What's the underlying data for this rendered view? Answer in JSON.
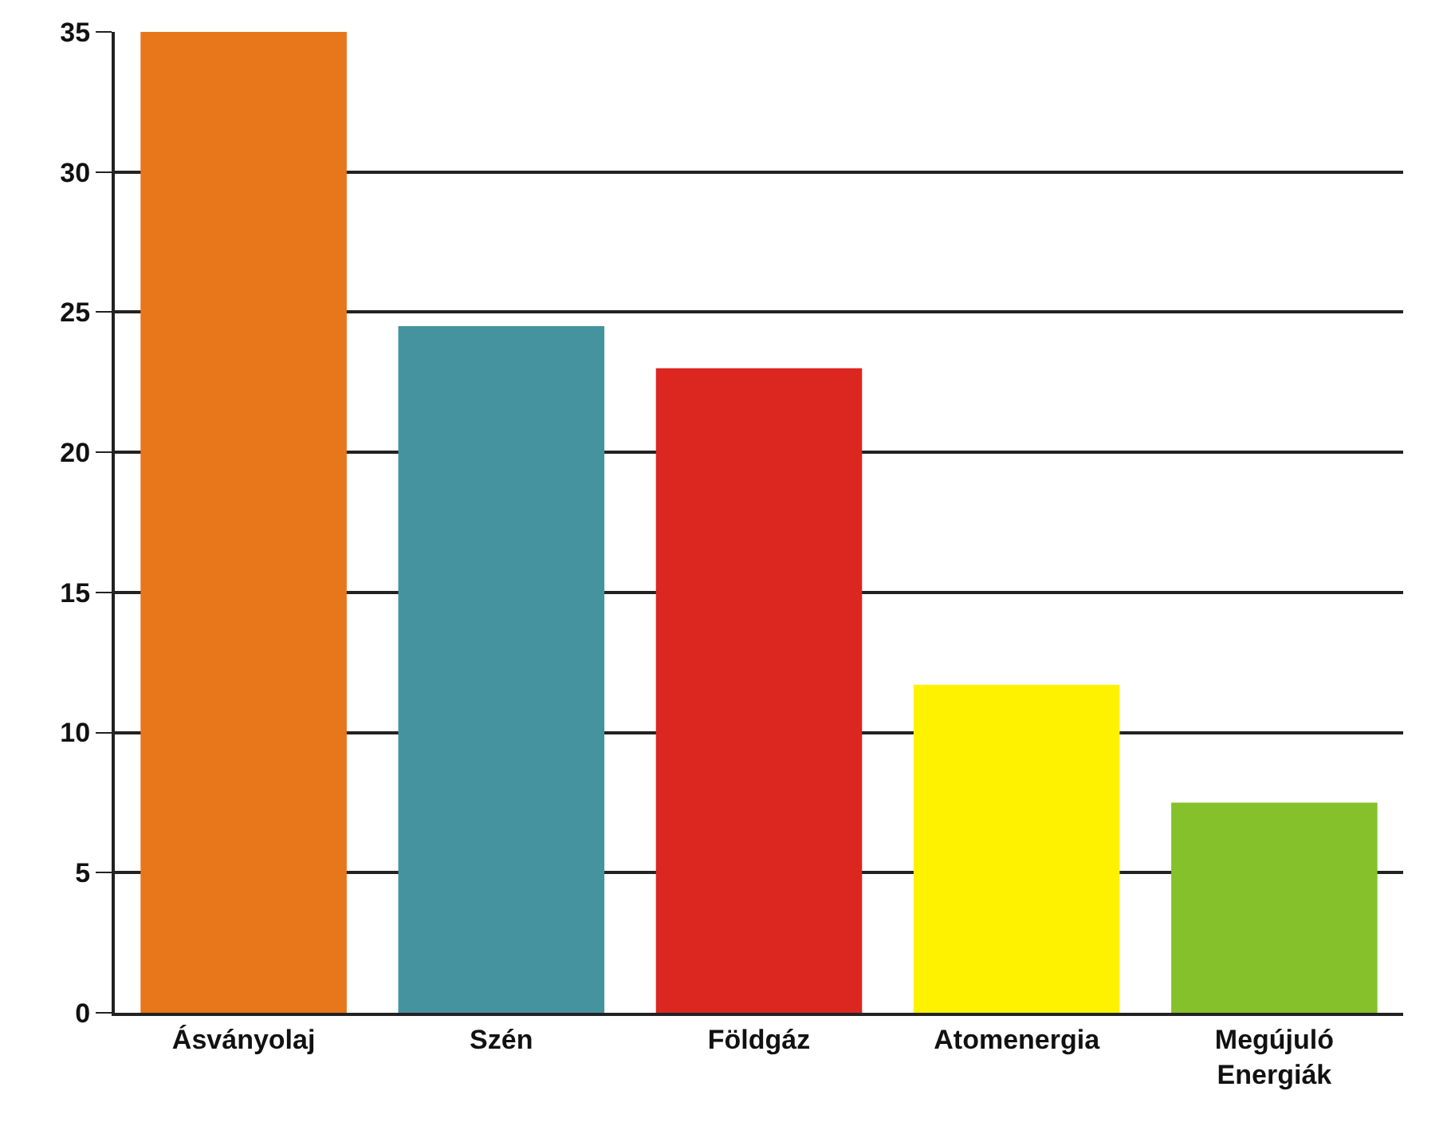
{
  "chart_data": {
    "type": "bar",
    "categories": [
      "Ásványolaj",
      "Szén",
      "Földgáz",
      "Atomenergia",
      "Megújuló Energiák"
    ],
    "values": [
      35,
      24.5,
      23,
      11.7,
      7.5
    ],
    "colors": [
      "#e8761a",
      "#45939f",
      "#db2720",
      "#fff200",
      "#84c12a"
    ],
    "ylim": [
      0,
      35
    ],
    "yticks": [
      0,
      5,
      10,
      15,
      20,
      25,
      30,
      35
    ],
    "grid": "y"
  }
}
